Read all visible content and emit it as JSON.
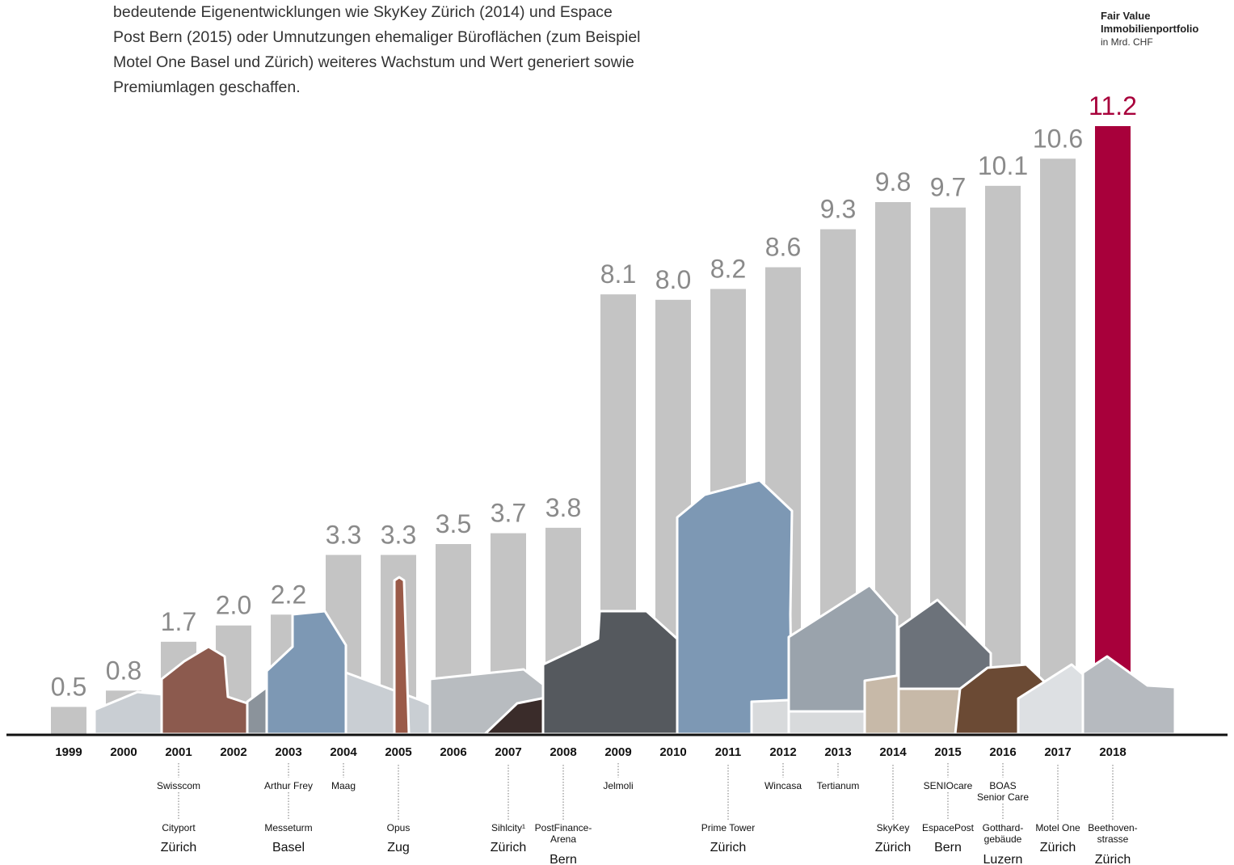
{
  "intro": {
    "line1": "bedeutende Eigenentwicklungen wie SkyKey Zürich (2014) und Espace",
    "line2": "Post Bern (2015) oder Umnutzungen ehemaliger Büroflächen (zum Beispiel",
    "line3": "Motel One Basel und Zürich) weiteres Wachstum und Wert generiert sowie",
    "line4": "Premiumlagen geschaffen."
  },
  "legend": {
    "line1": "Fair Value",
    "line2": "Immobilienportfolio",
    "unit": "in Mrd. CHF"
  },
  "colors": {
    "bar": "#c4c4c4",
    "highlight": "#a8003b",
    "value_label": "#8a8a8a",
    "axis": "#111111",
    "building_dark": "#5e6a76",
    "building_glass": "#7d98b4",
    "building_light": "#c9ced3"
  },
  "chart_data": {
    "type": "bar",
    "categories": [
      "1999",
      "2000",
      "2001",
      "2002",
      "2003",
      "2004",
      "2005",
      "2006",
      "2007",
      "2008",
      "2009",
      "2010",
      "2011",
      "2012",
      "2013",
      "2014",
      "2015",
      "2016",
      "2017",
      "2018"
    ],
    "values": [
      0.5,
      0.8,
      1.7,
      2.0,
      2.2,
      3.3,
      3.3,
      3.5,
      3.7,
      3.8,
      8.1,
      8.0,
      8.2,
      8.6,
      9.3,
      9.8,
      9.7,
      10.1,
      10.6,
      11.2
    ],
    "value_labels": [
      "0.5",
      "0.8",
      "1.7",
      "2.0",
      "2.2",
      "3.3",
      "3.3",
      "3.5",
      "3.7",
      "3.8",
      "8.1",
      "8.0",
      "8.2",
      "8.6",
      "9.3",
      "9.8",
      "9.7",
      "10.1",
      "10.6",
      "11.2"
    ],
    "highlight_category": "2018",
    "ylim": [
      0,
      11.2
    ],
    "grid": false,
    "legend_placement": "top-right",
    "annotations": [
      {
        "year": "2001",
        "upper": "Swisscom",
        "lower": [
          "Cityport"
        ],
        "city": "Zürich"
      },
      {
        "year": "2003",
        "upper": "Arthur Frey",
        "lower": [
          "Messeturm"
        ],
        "city": "Basel"
      },
      {
        "year": "2004",
        "upper": "Maag",
        "lower": [],
        "city": ""
      },
      {
        "year": "2005",
        "upper": "",
        "lower": [
          "Opus"
        ],
        "city": "Zug"
      },
      {
        "year": "2007",
        "upper": "",
        "lower": [
          "Sihlcity¹"
        ],
        "city": "Zürich"
      },
      {
        "year": "2008",
        "upper": "",
        "lower": [
          "PostFinance-",
          "Arena"
        ],
        "city": "Bern"
      },
      {
        "year": "2009",
        "upper": "Jelmoli",
        "lower": [],
        "city": ""
      },
      {
        "year": "2011",
        "upper": "",
        "lower": [
          "Prime Tower"
        ],
        "city": "Zürich"
      },
      {
        "year": "2012",
        "upper": "Wincasa",
        "lower": [],
        "city": ""
      },
      {
        "year": "2013",
        "upper": "Tertianum",
        "lower": [],
        "city": ""
      },
      {
        "year": "2014",
        "upper": "",
        "lower": [
          "SkyKey"
        ],
        "city": "Zürich"
      },
      {
        "year": "2015",
        "upper": "SENIOcare",
        "lower": [
          "EspacePost"
        ],
        "city": "Bern"
      },
      {
        "year": "2016",
        "upper": "BOAS\nSenior Care",
        "lower": [
          "Gotthard-",
          "gebäude"
        ],
        "city": "Luzern"
      },
      {
        "year": "2017",
        "upper": "",
        "lower": [
          "Motel One"
        ],
        "city": "Zürich"
      },
      {
        "year": "2018",
        "upper": "",
        "lower": [
          "Beethoven-",
          "strasse"
        ],
        "city": "Zürich"
      }
    ]
  }
}
